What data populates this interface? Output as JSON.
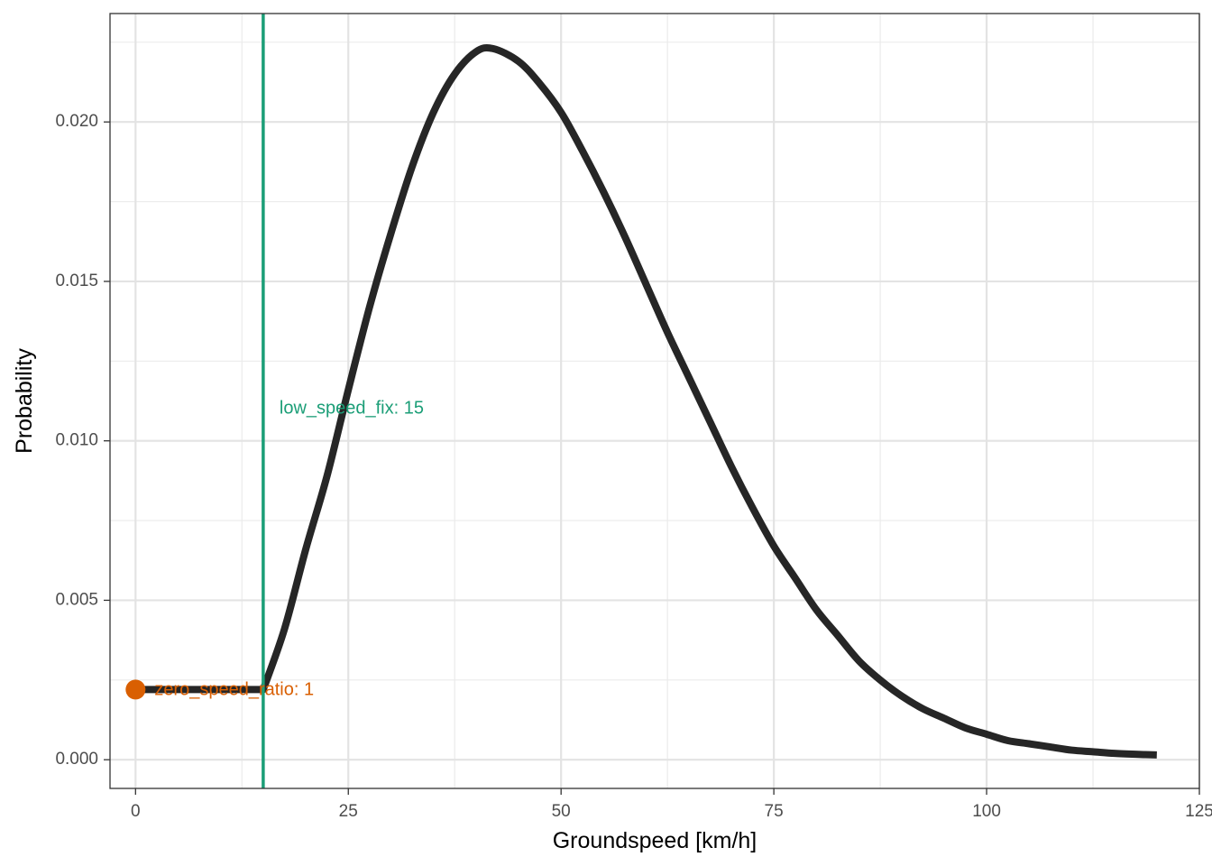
{
  "chart_data": {
    "type": "line",
    "title": "",
    "xlabel": "Groundspeed [km/h]",
    "ylabel": "Probability",
    "xlim": [
      -3,
      125
    ],
    "ylim": [
      -0.0009,
      0.0234
    ],
    "x_ticks": [
      0,
      25,
      50,
      75,
      100,
      125
    ],
    "x_tick_labels": [
      "0",
      "25",
      "50",
      "75",
      "100",
      "125"
    ],
    "y_ticks": [
      0,
      0.005,
      0.01,
      0.015,
      0.02
    ],
    "y_tick_labels": [
      "0.000",
      "0.005",
      "0.010",
      "0.015",
      "0.020"
    ],
    "grid": true,
    "series": [
      {
        "color": "#262626",
        "x": [
          0,
          15,
          17.5,
          20,
          22.5,
          25,
          27.5,
          30,
          32.5,
          35,
          37.5,
          40,
          42,
          45,
          47.5,
          50,
          52.5,
          55,
          57.5,
          60,
          62.5,
          65,
          67.5,
          70,
          72.5,
          75,
          77.5,
          80,
          82.5,
          85,
          87.5,
          90,
          92.5,
          95,
          97.5,
          100,
          102.5,
          105,
          107.5,
          110,
          112.5,
          115,
          117.5,
          120
        ],
        "y": [
          0.0022,
          0.0022,
          0.0041,
          0.0066,
          0.0089,
          0.0116,
          0.0142,
          0.0165,
          0.0186,
          0.0203,
          0.0215,
          0.0222,
          0.0223,
          0.0219,
          0.0212,
          0.0203,
          0.0191,
          0.0178,
          0.0164,
          0.0149,
          0.0134,
          0.012,
          0.0106,
          0.0092,
          0.0079,
          0.0067,
          0.0057,
          0.0047,
          0.0039,
          0.0031,
          0.0025,
          0.002,
          0.0016,
          0.0013,
          0.001,
          0.0008,
          0.0006,
          0.0005,
          0.0004,
          0.0003,
          0.00025,
          0.0002,
          0.00017,
          0.00015
        ]
      }
    ],
    "vline": {
      "x": 15,
      "color": "#1b9e77",
      "label": "low_speed_fix: 15",
      "label_y": 0.011
    },
    "point": {
      "x": 0,
      "y": 0.0022,
      "color": "#d95f02",
      "label": "zero_speed_ratio: 1"
    }
  }
}
